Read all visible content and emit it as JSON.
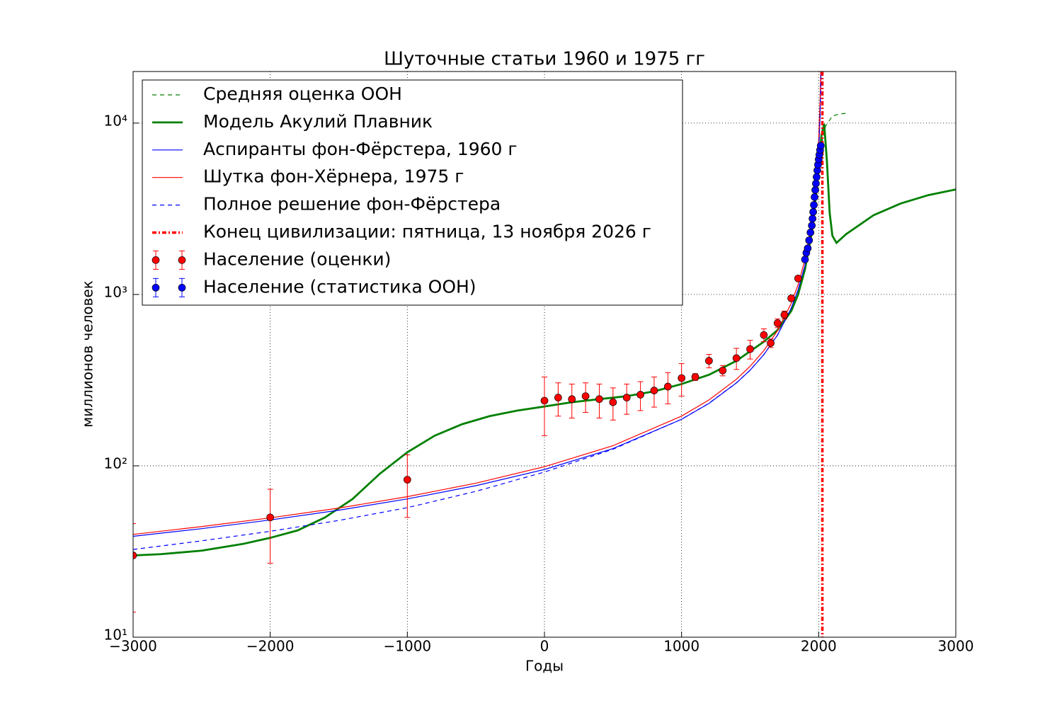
{
  "chart_data": {
    "type": "line",
    "title": "Шуточные статьи 1960 и 1975 гг",
    "x_label": "Годы",
    "y_label": "миллионов человек",
    "xlim": [
      -3000,
      3000
    ],
    "ylim": [
      10,
      20000
    ],
    "log_y": true,
    "grid": true,
    "legend": "upper left",
    "xticks": [
      {
        "value": -3000,
        "label": "−3000"
      },
      {
        "value": -2000,
        "label": "−2000"
      },
      {
        "value": -1000,
        "label": "−1000"
      },
      0,
      1000,
      2000,
      3000
    ],
    "yticks": [
      {
        "value": 10,
        "label": "10¹"
      },
      {
        "value": 100,
        "label": "10²"
      },
      {
        "value": 1000,
        "label": "10³"
      },
      {
        "value": 10000,
        "label": "10⁴"
      }
    ],
    "series": [
      {
        "name": "Средняя оценка ООН",
        "type": "line",
        "color": "#008000",
        "style": "dashed",
        "width": 1.2,
        "x": [
          2010,
          2050,
          2100,
          2150,
          2200
        ],
        "values": [
          6900,
          9600,
          11000,
          11300,
          11400
        ]
      },
      {
        "name": "Модель Акулий Плавник",
        "type": "line",
        "color": "#008000",
        "style": "solid",
        "width": 2.8,
        "x": [
          -3000,
          -2800,
          -2500,
          -2200,
          -2000,
          -1800,
          -1600,
          -1400,
          -1200,
          -1000,
          -800,
          -600,
          -400,
          -200,
          0,
          200,
          400,
          600,
          800,
          1000,
          1200,
          1400,
          1600,
          1700,
          1800,
          1850,
          1900,
          1950,
          1980,
          2000,
          2020,
          2040,
          2060,
          2080,
          2100,
          2130,
          2200,
          2400,
          2600,
          2800,
          3000
        ],
        "values": [
          30,
          30.5,
          32,
          35,
          38,
          42,
          50,
          64,
          90,
          120,
          150,
          175,
          195,
          210,
          222,
          235,
          245,
          255,
          272,
          300,
          340,
          410,
          530,
          620,
          800,
          1000,
          1400,
          2300,
          3800,
          5500,
          8500,
          9900,
          6000,
          3000,
          2200,
          2000,
          2250,
          2900,
          3400,
          3800,
          4100
        ]
      },
      {
        "name": "Аспиранты фон-Фёрстера, 1960 г",
        "type": "line",
        "color": "#0000ff",
        "style": "solid",
        "width": 1.2,
        "x": [
          -3000,
          -2500,
          -2000,
          -1500,
          -1000,
          -500,
          0,
          500,
          1000,
          1200,
          1400,
          1500,
          1600,
          1700,
          1800,
          1850,
          1900,
          1950,
          1980,
          2000,
          2010,
          2020
        ],
        "values": [
          38.8,
          43.0,
          48.3,
          55.1,
          64.1,
          76.6,
          95.2,
          126.1,
          186.8,
          231.5,
          304.5,
          361.7,
          445.5,
          580,
          833,
          1066,
          1481,
          2432,
          3969,
          6885,
          10915,
          26562
        ]
      },
      {
        "name": "Шутка фон-Хёрнера, 1975 г",
        "type": "line",
        "color": "#ff0000",
        "style": "solid",
        "width": 1.2,
        "x": [
          -3000,
          -2500,
          -2000,
          -1500,
          -1000,
          -500,
          0,
          500,
          1000,
          1200,
          1400,
          1500,
          1600,
          1700,
          1800,
          1850,
          1900,
          1950,
          1980,
          2000,
          2010,
          2015,
          2020
        ],
        "values": [
          39.8,
          44.2,
          49.7,
          56.7,
          66.1,
          79.2,
          98.8,
          131.1,
          195.1,
          242.4,
          320,
          381,
          470.6,
          615.4,
          888.9,
          1142.9,
          1600,
          2666.7,
          4444.4,
          8000,
          13333,
          20000,
          40000
        ]
      },
      {
        "name": "Полное решение фон-Фёрстера",
        "type": "line",
        "color": "#0000ff",
        "style": "dashed",
        "width": 1.2,
        "x": [
          -3000,
          -2500,
          -2000,
          -1500,
          -1000,
          -500,
          0,
          500,
          1000,
          1200,
          1400,
          1500,
          1600,
          1700,
          1800,
          1850,
          1900,
          1950,
          1980,
          2000,
          2010,
          2020
        ],
        "values": [
          32.5,
          36.5,
          41.5,
          48,
          57,
          71,
          92,
          125,
          187,
          232,
          305,
          362,
          446,
          580,
          833,
          1066,
          1481,
          2432,
          3969,
          6885,
          10915,
          26562
        ]
      },
      {
        "name": "Конец цивилизации: пятница, 13 ноября 2026 г",
        "type": "vline",
        "color": "#ff0000",
        "style": "dashdot",
        "width": 3.5,
        "x_value": 2026.87
      },
      {
        "name": "Население (оценки)",
        "type": "errorbar",
        "color": "#ff0000",
        "x": [
          -3000,
          -2000,
          -1000,
          0,
          100,
          200,
          300,
          400,
          500,
          600,
          700,
          800,
          900,
          1000,
          1100,
          1200,
          1300,
          1400,
          1500,
          1600,
          1650,
          1700,
          1750,
          1800,
          1850
        ],
        "values": [
          30,
          50,
          83,
          240,
          250,
          245,
          255,
          245,
          235,
          250,
          260,
          275,
          290,
          325,
          330,
          410,
          360,
          425,
          480,
          580,
          520,
          680,
          760,
          950,
          1240
        ],
        "errors": [
          16,
          23,
          33,
          90,
          55,
          55,
          50,
          55,
          50,
          50,
          50,
          55,
          60,
          70,
          15,
          37,
          25,
          60,
          60,
          50,
          30,
          40,
          40,
          30,
          30
        ]
      },
      {
        "name": "Население (статистика ООН)",
        "type": "errorbar",
        "color": "#0000ff",
        "x": [
          1900,
          1910,
          1920,
          1930,
          1940,
          1950,
          1955,
          1960,
          1965,
          1970,
          1975,
          1980,
          1985,
          1990,
          1995,
          2000,
          2005,
          2010,
          2015
        ],
        "values": [
          1600,
          1750,
          1860,
          2070,
          2300,
          2525,
          2770,
          3030,
          3330,
          3700,
          4070,
          4440,
          4850,
          5300,
          5720,
          6140,
          6540,
          6960,
          7380
        ]
      }
    ]
  }
}
